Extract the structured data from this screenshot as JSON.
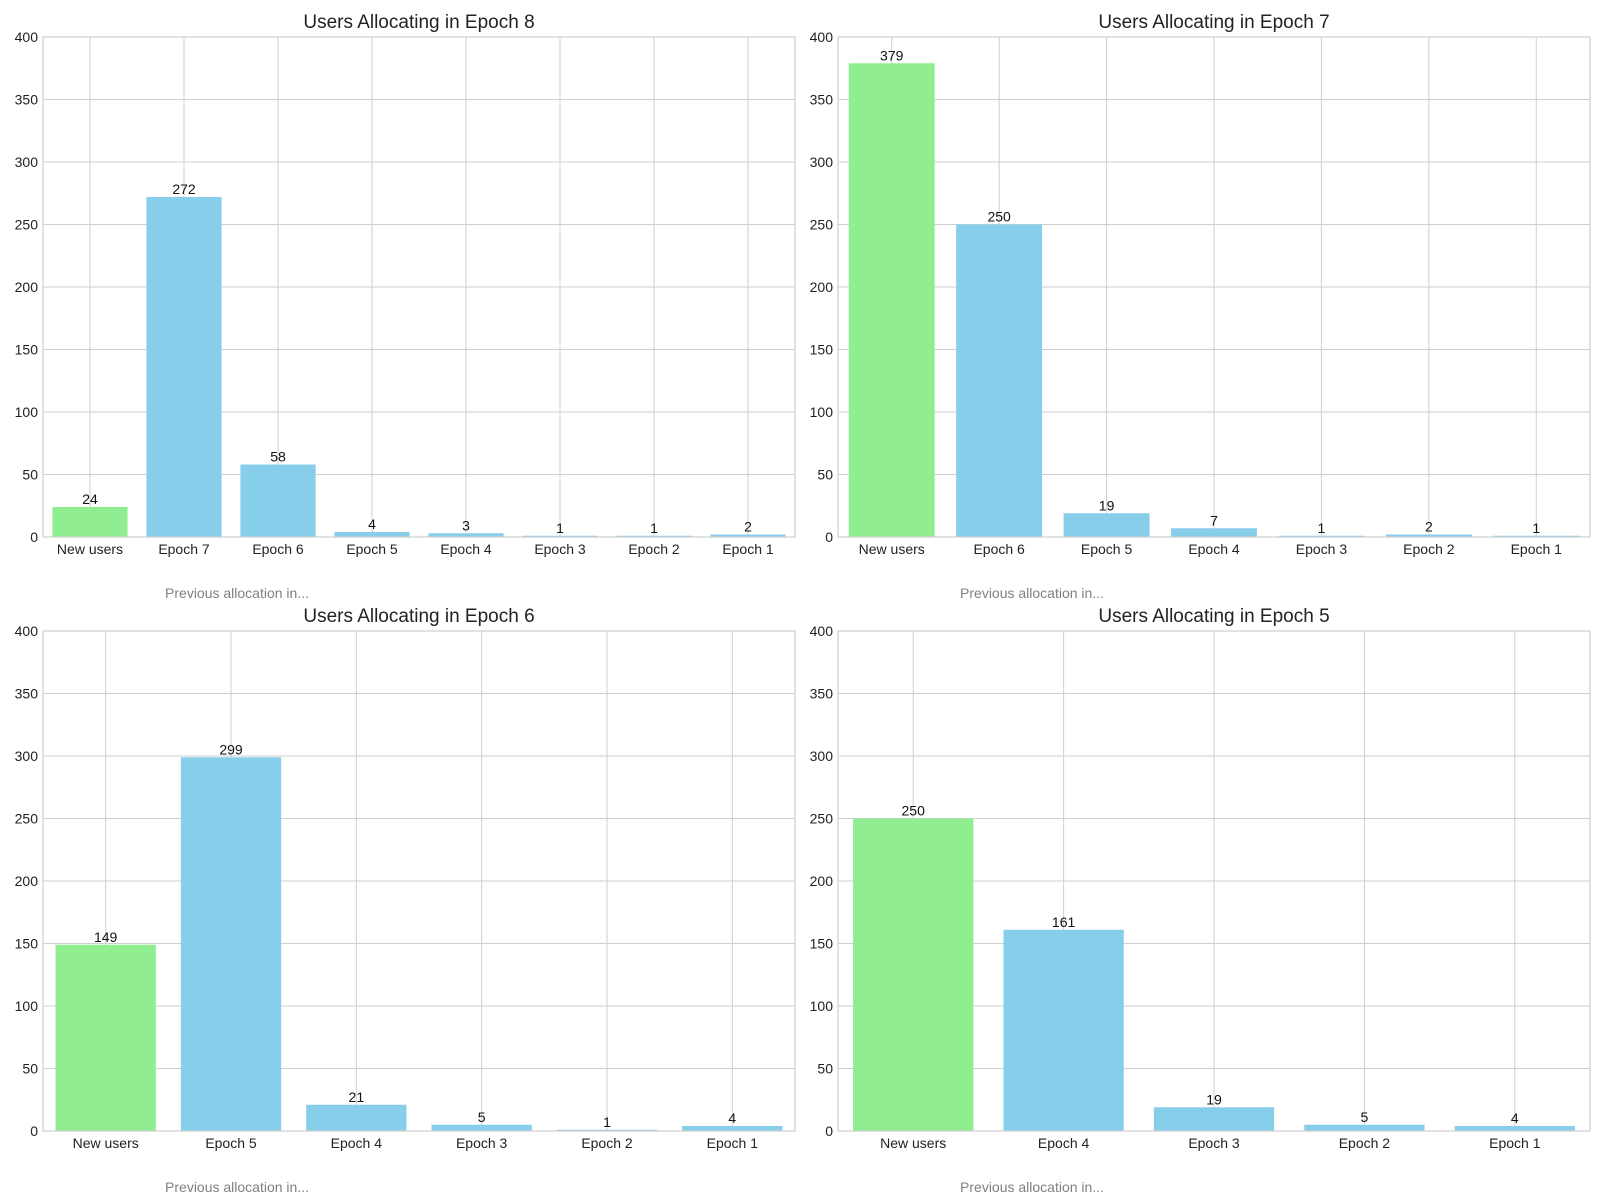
{
  "chart_data": [
    {
      "type": "bar",
      "title": "Users Allocating in Epoch 8",
      "xlabel": "Previous allocation in...",
      "ylabel": "",
      "ylim": [
        0,
        400
      ],
      "yticks": [
        0,
        50,
        100,
        150,
        200,
        250,
        300,
        350,
        400
      ],
      "grid": true,
      "categories": [
        "New users",
        "Epoch 7",
        "Epoch 6",
        "Epoch 5",
        "Epoch 4",
        "Epoch 3",
        "Epoch 2",
        "Epoch 1"
      ],
      "values": [
        24,
        272,
        58,
        4,
        3,
        1,
        1,
        2
      ],
      "colors": [
        "#90ee90",
        "#87ceeb",
        "#87ceeb",
        "#87ceeb",
        "#87ceeb",
        "#87ceeb",
        "#87ceeb",
        "#87ceeb"
      ]
    },
    {
      "type": "bar",
      "title": "Users Allocating in Epoch 7",
      "xlabel": "Previous allocation in...",
      "ylabel": "",
      "ylim": [
        0,
        400
      ],
      "yticks": [
        0,
        50,
        100,
        150,
        200,
        250,
        300,
        350,
        400
      ],
      "grid": true,
      "categories": [
        "New users",
        "Epoch 6",
        "Epoch 5",
        "Epoch 4",
        "Epoch 3",
        "Epoch 2",
        "Epoch 1"
      ],
      "values": [
        379,
        250,
        19,
        7,
        1,
        2,
        1
      ],
      "colors": [
        "#90ee90",
        "#87ceeb",
        "#87ceeb",
        "#87ceeb",
        "#87ceeb",
        "#87ceeb",
        "#87ceeb"
      ]
    },
    {
      "type": "bar",
      "title": "Users Allocating in Epoch 6",
      "xlabel": "Previous allocation in...",
      "ylabel": "",
      "ylim": [
        0,
        400
      ],
      "yticks": [
        0,
        50,
        100,
        150,
        200,
        250,
        300,
        350,
        400
      ],
      "grid": true,
      "categories": [
        "New users",
        "Epoch 5",
        "Epoch 4",
        "Epoch 3",
        "Epoch 2",
        "Epoch 1"
      ],
      "values": [
        149,
        299,
        21,
        5,
        1,
        4
      ],
      "colors": [
        "#90ee90",
        "#87ceeb",
        "#87ceeb",
        "#87ceeb",
        "#87ceeb",
        "#87ceeb"
      ]
    },
    {
      "type": "bar",
      "title": "Users Allocating in Epoch 5",
      "xlabel": "Previous allocation in...",
      "ylabel": "",
      "ylim": [
        0,
        400
      ],
      "yticks": [
        0,
        50,
        100,
        150,
        200,
        250,
        300,
        350,
        400
      ],
      "grid": true,
      "categories": [
        "New users",
        "Epoch 4",
        "Epoch 3",
        "Epoch 2",
        "Epoch 1"
      ],
      "values": [
        250,
        161,
        19,
        5,
        4
      ],
      "colors": [
        "#90ee90",
        "#87ceeb",
        "#87ceeb",
        "#87ceeb",
        "#87ceeb"
      ]
    }
  ]
}
